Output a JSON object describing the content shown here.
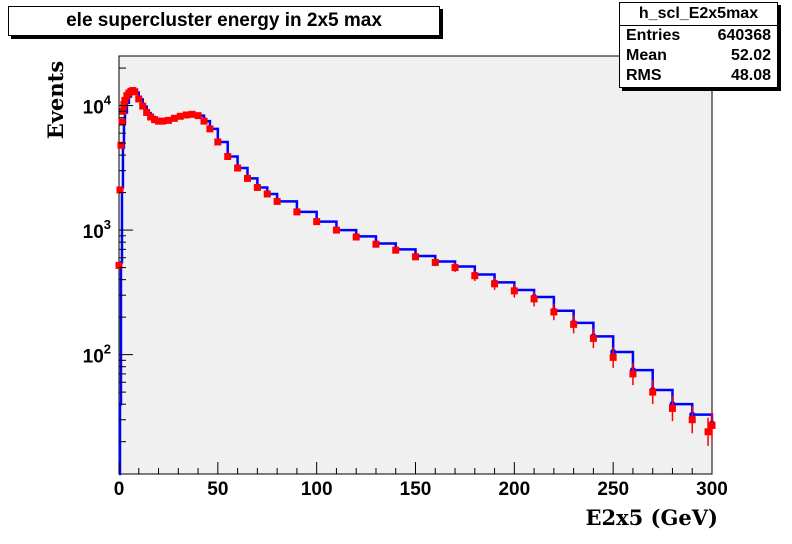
{
  "chart_data": {
    "type": "scatter",
    "title": "ele supercluster energy in 2x5 max",
    "xlabel": "E2x5 (GeV)",
    "ylabel": "Events",
    "xlim": [
      0,
      300
    ],
    "ylim": [
      11,
      25000
    ],
    "y_scale": "log",
    "x_ticks": [
      "0",
      "50",
      "100",
      "150",
      "200",
      "250",
      "300"
    ],
    "y_ticks": [
      {
        "value": 10000,
        "base": "10",
        "exp": "4"
      },
      {
        "value": 1000,
        "base": "10",
        "exp": "3"
      },
      {
        "value": 100,
        "base": "10",
        "exp": "2"
      }
    ],
    "colors": {
      "series_blue": "#0000ff",
      "series_red": "#ff0000",
      "plot_bg": "#f0f0f0"
    },
    "series": [
      {
        "color": "#0000ff",
        "style": "histogram-line",
        "x": [
          0,
          0.5,
          1,
          1.5,
          2,
          2.5,
          3,
          4,
          5,
          6,
          7,
          8,
          10,
          12,
          14,
          16,
          18,
          20,
          22,
          25,
          28,
          31,
          34,
          37,
          40,
          43,
          46,
          50,
          55,
          60,
          65,
          70,
          75,
          80,
          90,
          100,
          110,
          120,
          130,
          140,
          150,
          160,
          170,
          180,
          190,
          200,
          210,
          220,
          230,
          240,
          250,
          260,
          270,
          280,
          290,
          300
        ],
        "y": [
          11,
          40,
          550,
          2200,
          4600,
          7200,
          8800,
          10500,
          11800,
          12600,
          13000,
          12700,
          11200,
          9800,
          8700,
          8100,
          7700,
          7500,
          7500,
          7600,
          7900,
          8200,
          8400,
          8500,
          8300,
          7500,
          6500,
          5100,
          3900,
          3150,
          2600,
          2200,
          1950,
          1700,
          1400,
          1170,
          1000,
          890,
          780,
          700,
          620,
          560,
          510,
          440,
          380,
          330,
          290,
          225,
          180,
          140,
          105,
          75,
          52,
          40,
          33,
          28
        ]
      },
      {
        "color": "#ff0000",
        "style": "markers",
        "x": [
          0,
          0.5,
          1,
          1.5,
          2,
          2.5,
          3,
          4,
          5,
          6,
          7,
          8,
          10,
          12,
          14,
          16,
          18,
          20,
          22,
          25,
          28,
          31,
          34,
          37,
          40,
          43,
          46,
          50,
          55,
          60,
          65,
          70,
          75,
          80,
          90,
          100,
          110,
          120,
          130,
          140,
          150,
          160,
          170,
          180,
          190,
          200,
          210,
          220,
          230,
          240,
          250,
          260,
          270,
          280,
          290,
          298,
          300
        ],
        "y": [
          520,
          2100,
          4800,
          7400,
          9000,
          10200,
          11000,
          12000,
          12600,
          13000,
          13200,
          12900,
          11300,
          9900,
          8800,
          8100,
          7700,
          7500,
          7500,
          7600,
          7900,
          8200,
          8400,
          8500,
          8300,
          7500,
          6500,
          5100,
          3900,
          3150,
          2600,
          2200,
          1950,
          1700,
          1400,
          1170,
          1000,
          880,
          770,
          690,
          610,
          550,
          500,
          430,
          370,
          325,
          280,
          220,
          175,
          135,
          95,
          70,
          50,
          37,
          30,
          24,
          27
        ]
      }
    ]
  },
  "stats": {
    "name": "h_scl_E2x5max",
    "rows": [
      {
        "label": "Entries",
        "value": "640368"
      },
      {
        "label": "Mean",
        "value": "52.02"
      },
      {
        "label": "RMS",
        "value": "48.08"
      }
    ]
  }
}
